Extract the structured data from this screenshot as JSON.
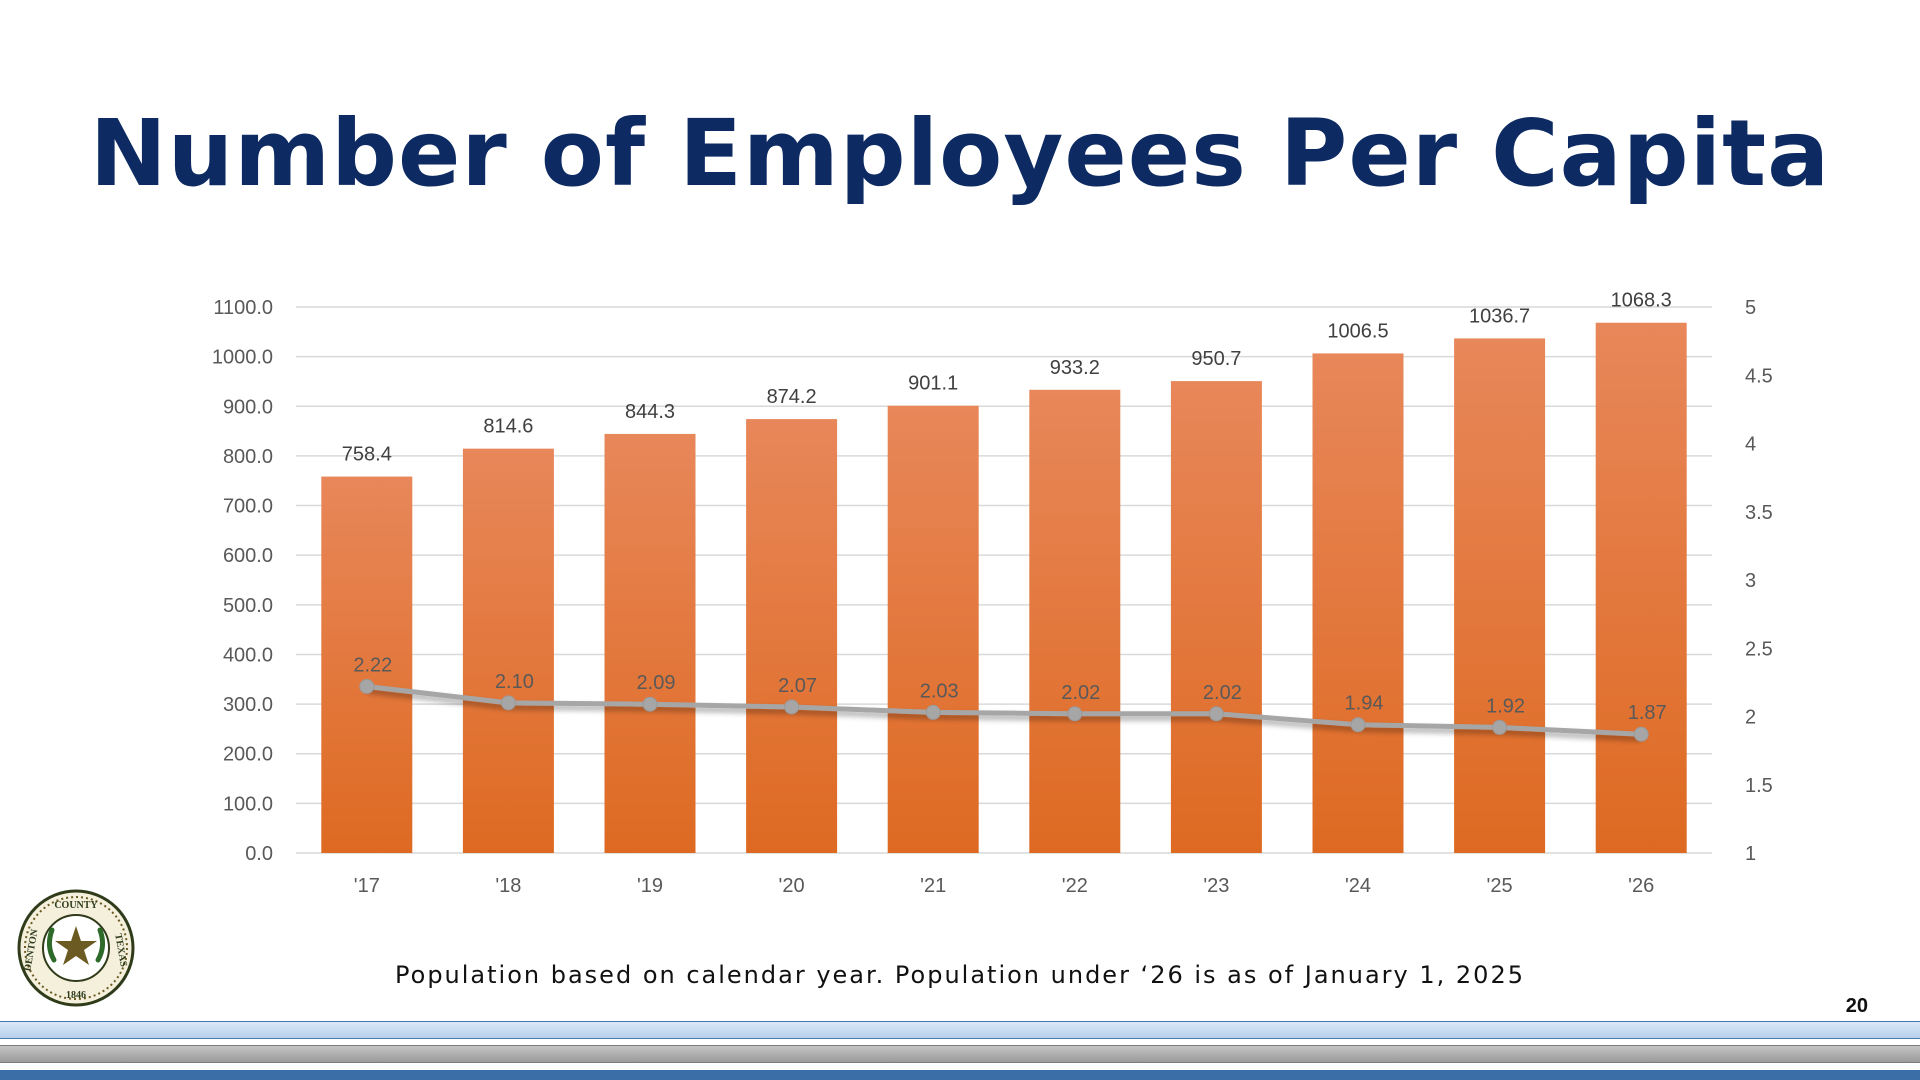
{
  "slide": {
    "title": "Number of Employees Per Capita",
    "footnote": "Population based on calendar year. Population under ‘26 is as of January 1, 2025",
    "page_number": "20",
    "seal_text": [
      "DENTON",
      "COUNTY",
      "TEXAS",
      "1846"
    ]
  },
  "colors": {
    "title": "#0d2a63",
    "bar_top": "#e8875a",
    "bar_bottom": "#de6a22",
    "line": "#a6a6a6",
    "grid": "#d9d9d9"
  },
  "chart_data": {
    "type": "bar",
    "categories": [
      "'17",
      "'18",
      "'19",
      "'20",
      "'21",
      "'22",
      "'23",
      "'24",
      "'25",
      "'26"
    ],
    "series": [
      {
        "type": "bar",
        "axis": "left",
        "values": [
          758.4,
          814.6,
          844.3,
          874.2,
          901.1,
          933.2,
          950.7,
          1006.5,
          1036.7,
          1068.3
        ],
        "labels": [
          "758.4",
          "814.6",
          "844.3",
          "874.2",
          "901.1",
          "933.2",
          "950.7",
          "1006.5",
          "1036.7",
          "1068.3"
        ]
      },
      {
        "type": "line",
        "axis": "right",
        "values": [
          2.22,
          2.1,
          2.09,
          2.07,
          2.03,
          2.02,
          2.02,
          1.94,
          1.92,
          1.87
        ],
        "labels": [
          "2.22",
          "2.10",
          "2.09",
          "2.07",
          "2.03",
          "2.02",
          "2.02",
          "1.94",
          "1.92",
          "1.87"
        ]
      }
    ],
    "y_left": {
      "range": [
        0,
        1100
      ],
      "ticks": [
        "0.0",
        "100.0",
        "200.0",
        "300.0",
        "400.0",
        "500.0",
        "600.0",
        "700.0",
        "800.0",
        "900.0",
        "1000.0",
        "1100.0"
      ]
    },
    "y_right": {
      "range": [
        1,
        5
      ],
      "ticks": [
        "1",
        "1.5",
        "2",
        "2.5",
        "3",
        "3.5",
        "4",
        "4.5",
        "5"
      ]
    },
    "grid": true,
    "legend": "none"
  }
}
